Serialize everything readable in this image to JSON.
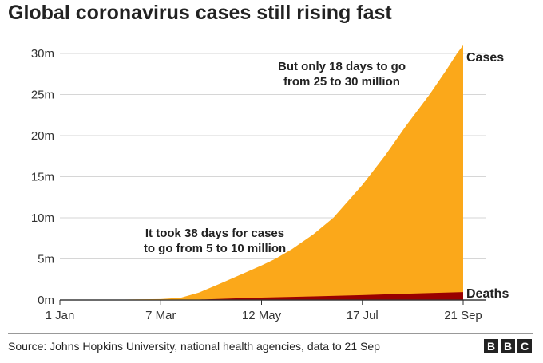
{
  "chart_data": {
    "type": "area",
    "title": "Global coronavirus cases still rising fast",
    "x_axis": {
      "start": "2020-01-01",
      "end": "2020-09-21",
      "ticks": [
        {
          "date": "2020-01-01",
          "label": "1 Jan"
        },
        {
          "date": "2020-03-07",
          "label": "7 Mar"
        },
        {
          "date": "2020-05-12",
          "label": "12 May"
        },
        {
          "date": "2020-07-17",
          "label": "17 Jul"
        },
        {
          "date": "2020-09-21",
          "label": "21 Sep"
        }
      ]
    },
    "y_axis": {
      "min": 0,
      "max": 30000000,
      "ticks": [
        {
          "value": 0,
          "label": "0m"
        },
        {
          "value": 5000000,
          "label": "5m"
        },
        {
          "value": 10000000,
          "label": "10m"
        },
        {
          "value": 15000000,
          "label": "15m"
        },
        {
          "value": 20000000,
          "label": "20m"
        },
        {
          "value": 25000000,
          "label": "25m"
        },
        {
          "value": 30000000,
          "label": "30m"
        }
      ],
      "grid": true
    },
    "series": [
      {
        "name": "Cases",
        "color": "#FBA81A",
        "points": [
          [
            "2020-01-01",
            0
          ],
          [
            "2020-01-22",
            1000
          ],
          [
            "2020-02-05",
            30000
          ],
          [
            "2020-02-20",
            78000
          ],
          [
            "2020-03-07",
            110000
          ],
          [
            "2020-03-20",
            270000
          ],
          [
            "2020-04-01",
            900000
          ],
          [
            "2020-04-15",
            2000000
          ],
          [
            "2020-05-01",
            3300000
          ],
          [
            "2020-05-12",
            4200000
          ],
          [
            "2020-05-21",
            5000000
          ],
          [
            "2020-06-01",
            6200000
          ],
          [
            "2020-06-15",
            8000000
          ],
          [
            "2020-06-28",
            10000000
          ],
          [
            "2020-07-17",
            14000000
          ],
          [
            "2020-08-01",
            17600000
          ],
          [
            "2020-08-15",
            21300000
          ],
          [
            "2020-08-30",
            25000000
          ],
          [
            "2020-09-10",
            28000000
          ],
          [
            "2020-09-17",
            30000000
          ],
          [
            "2020-09-21",
            31000000
          ]
        ]
      },
      {
        "name": "Deaths",
        "color": "#990000",
        "points": [
          [
            "2020-01-01",
            0
          ],
          [
            "2020-03-07",
            3500
          ],
          [
            "2020-04-01",
            47000
          ],
          [
            "2020-05-01",
            230000
          ],
          [
            "2020-05-12",
            290000
          ],
          [
            "2020-06-15",
            440000
          ],
          [
            "2020-07-17",
            590000
          ],
          [
            "2020-08-15",
            770000
          ],
          [
            "2020-09-21",
            960000
          ]
        ]
      }
    ],
    "annotations": [
      {
        "lines": [
          "It took 38 days for cases",
          "to go from 5 to 10 million"
        ]
      },
      {
        "lines": [
          "But only 18 days to go",
          "from 25 to 30 million"
        ]
      }
    ]
  },
  "footer": {
    "source": "Source: Johns Hopkins University, national health agencies, data to 21 Sep",
    "logo_letters": [
      "B",
      "B",
      "C"
    ]
  }
}
